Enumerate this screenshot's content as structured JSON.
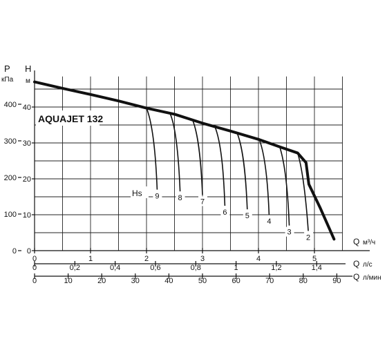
{
  "chart_data": {
    "type": "line",
    "title": "AQUAJET 132",
    "left_axes": {
      "p_symbol": "P",
      "p_unit": "кПа",
      "p_ticks": [
        "0",
        "100",
        "200",
        "300",
        "400"
      ],
      "h_symbol": "H",
      "h_unit": "м",
      "h_ticks": [
        "0",
        "10",
        "20",
        "30",
        "40"
      ],
      "h_range": [
        0,
        50
      ]
    },
    "bottom_axes": [
      {
        "symbol": "Q",
        "unit": "м³/ч",
        "ticks": [
          "0",
          "1",
          "2",
          "3",
          "4",
          "5"
        ],
        "values": [
          0,
          1,
          2,
          3,
          4,
          5
        ],
        "range_max_m3h": 5.5
      },
      {
        "symbol": "Q",
        "unit": "л/с",
        "ticks": [
          "0",
          "0,2",
          "0,4",
          "0,6",
          "0,8",
          "1",
          "1,2",
          "1,4"
        ],
        "values": [
          0,
          0.2,
          0.4,
          0.6,
          0.8,
          1.0,
          1.2,
          1.4
        ]
      },
      {
        "symbol": "Q",
        "unit": "л/мин",
        "ticks": [
          "0",
          "10",
          "20",
          "30",
          "40",
          "50",
          "60",
          "70",
          "80",
          "90"
        ],
        "values": [
          0,
          10,
          20,
          30,
          40,
          50,
          60,
          70,
          80,
          90
        ]
      }
    ],
    "grid": true,
    "main_curve": {
      "points": [
        [
          0,
          47
        ],
        [
          0.5,
          45.2
        ],
        [
          1,
          43.5
        ],
        [
          1.5,
          41.7
        ],
        [
          2,
          39.7
        ],
        [
          2.5,
          38.0
        ],
        [
          3,
          35.5
        ],
        [
          3.5,
          33.3
        ],
        [
          4,
          31.0
        ],
        [
          4.4,
          28.8
        ],
        [
          4.7,
          27.2
        ],
        [
          4.85,
          24.5
        ],
        [
          4.9,
          18.5
        ],
        [
          5.1,
          12.0
        ],
        [
          5.35,
          3.2
        ]
      ]
    },
    "suction_label": "Hs",
    "suction_curves": [
      {
        "label": "9",
        "points": [
          [
            2.0,
            39.7
          ],
          [
            2.12,
            35
          ],
          [
            2.17,
            25
          ],
          [
            2.19,
            17
          ]
        ]
      },
      {
        "label": "8",
        "points": [
          [
            2.42,
            38.2
          ],
          [
            2.54,
            34
          ],
          [
            2.58,
            24
          ],
          [
            2.6,
            16.5
          ]
        ]
      },
      {
        "label": "7",
        "points": [
          [
            2.82,
            36.5
          ],
          [
            2.94,
            32
          ],
          [
            2.98,
            23
          ],
          [
            3.0,
            15.5
          ]
        ]
      },
      {
        "label": "6",
        "points": [
          [
            3.22,
            34.6
          ],
          [
            3.34,
            30
          ],
          [
            3.38,
            21
          ],
          [
            3.4,
            12.5
          ]
        ]
      },
      {
        "label": "5",
        "points": [
          [
            3.62,
            32.7
          ],
          [
            3.74,
            28
          ],
          [
            3.78,
            19
          ],
          [
            3.8,
            11.5
          ]
        ]
      },
      {
        "label": "4",
        "points": [
          [
            4.02,
            30.7
          ],
          [
            4.12,
            26.5
          ],
          [
            4.17,
            18
          ],
          [
            4.19,
            10
          ]
        ]
      },
      {
        "label": "3",
        "points": [
          [
            4.38,
            28.9
          ],
          [
            4.48,
            24
          ],
          [
            4.53,
            15
          ],
          [
            4.55,
            7
          ]
        ]
      },
      {
        "label": "2",
        "points": [
          [
            4.7,
            27.2
          ],
          [
            4.8,
            22
          ],
          [
            4.86,
            12
          ],
          [
            4.89,
            5.5
          ]
        ]
      }
    ]
  }
}
